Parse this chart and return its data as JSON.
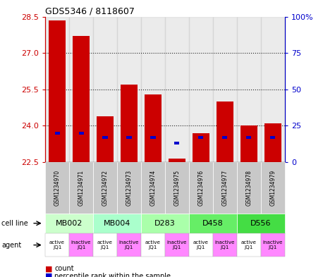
{
  "title": "GDS5346 / 8118607",
  "samples": [
    "GSM1234970",
    "GSM1234971",
    "GSM1234972",
    "GSM1234973",
    "GSM1234974",
    "GSM1234975",
    "GSM1234976",
    "GSM1234977",
    "GSM1234978",
    "GSM1234979"
  ],
  "red_values": [
    28.35,
    27.7,
    24.4,
    25.7,
    25.3,
    22.65,
    23.7,
    25.0,
    24.0,
    24.1
  ],
  "blue_pct": [
    20,
    20,
    17,
    17,
    17,
    13,
    17,
    17,
    17,
    17
  ],
  "y_min": 22.5,
  "y_max": 28.5,
  "y_ticks": [
    22.5,
    24.0,
    25.5,
    27.0,
    28.5
  ],
  "y2_ticks": [
    0,
    25,
    50,
    75,
    100
  ],
  "cell_line_map": [
    "MB002",
    "MB002",
    "MB004",
    "MB004",
    "D283",
    "D283",
    "D458",
    "D458",
    "D556",
    "D556"
  ],
  "cell_line_colors": {
    "MB002": "#ccffcc",
    "MB004": "#aaffcc",
    "D283": "#aaffaa",
    "D458": "#66ee66",
    "D556": "#44dd44"
  },
  "agent_labels": [
    "active\nJQ1",
    "inactive\nJQ1",
    "active\nJQ1",
    "inactive\nJQ1",
    "active\nJQ1",
    "inactive\nJQ1",
    "active\nJQ1",
    "inactive\nJQ1",
    "active\nJQ1",
    "inactive\nJQ1"
  ],
  "agent_colors": [
    "#ffffff",
    "#ff88ff",
    "#ffffff",
    "#ff88ff",
    "#ffffff",
    "#ff88ff",
    "#ffffff",
    "#ff88ff",
    "#ffffff",
    "#ff88ff"
  ],
  "bar_color": "#cc0000",
  "blue_color": "#0000cc",
  "col_bg_color": "#c8c8c8",
  "left_tick_color": "#cc0000",
  "right_tick_color": "#0000cc",
  "grid_color": "#222222",
  "grid_ticks": [
    24.0,
    25.5,
    27.0
  ]
}
